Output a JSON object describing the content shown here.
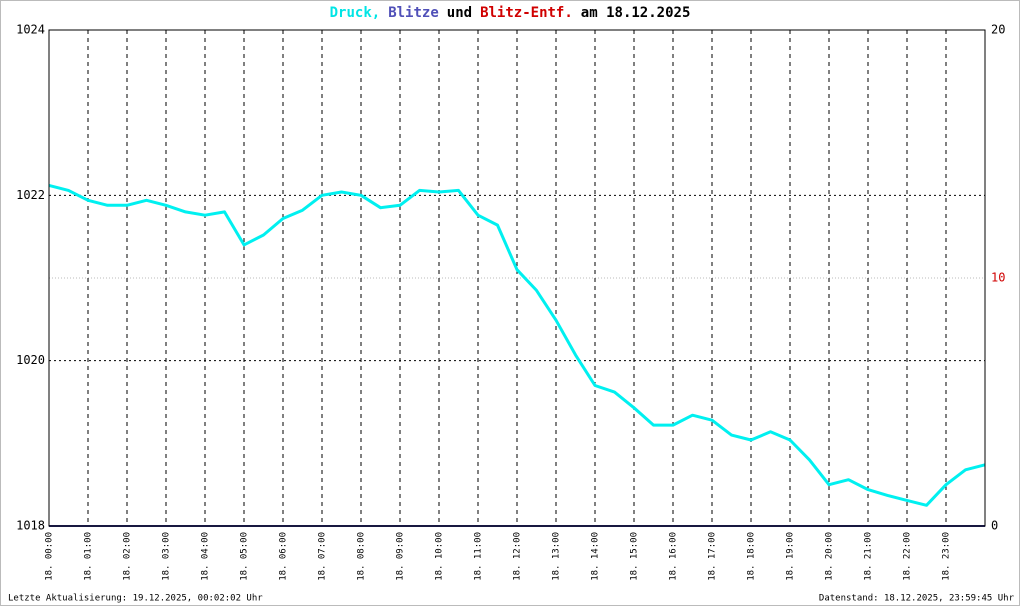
{
  "chart_data": {
    "type": "line",
    "title": [
      "Druck,",
      "Blitze",
      "und",
      "Blitz-Entf.",
      "am 18.12.2025"
    ],
    "title_colors": [
      "#00e5e5",
      "#5050b8",
      "#000000",
      "#d00000",
      "#000000"
    ],
    "footer_left": "Letzte Aktualisierung: 19.12.2025, 00:02:02 Uhr",
    "footer_right": "Datenstand: 18.12.2025, 23:59:45 Uhr",
    "x": [
      0,
      0.5,
      1,
      1.5,
      2,
      2.5,
      3,
      3.5,
      4,
      4.5,
      5,
      5.5,
      6,
      6.5,
      7,
      7.5,
      8,
      8.5,
      9,
      9.5,
      10,
      10.5,
      11,
      11.5,
      12,
      12.5,
      13,
      13.5,
      14,
      14.5,
      15,
      15.5,
      16,
      16.5,
      17,
      17.5,
      18,
      18.5,
      19,
      19.5,
      20,
      20.5,
      21,
      21.5,
      22,
      22.5,
      23,
      23.5,
      24
    ],
    "xlim": [
      0,
      24
    ],
    "xticks": [
      {
        "value": 0,
        "label": "18. 00:00"
      },
      {
        "value": 1,
        "label": "18. 01:00"
      },
      {
        "value": 2,
        "label": "18. 02:00"
      },
      {
        "value": 3,
        "label": "18. 03:00"
      },
      {
        "value": 4,
        "label": "18. 04:00"
      },
      {
        "value": 5,
        "label": "18. 05:00"
      },
      {
        "value": 6,
        "label": "18. 06:00"
      },
      {
        "value": 7,
        "label": "18. 07:00"
      },
      {
        "value": 8,
        "label": "18. 08:00"
      },
      {
        "value": 9,
        "label": "18. 09:00"
      },
      {
        "value": 10,
        "label": "18. 10:00"
      },
      {
        "value": 11,
        "label": "18. 11:00"
      },
      {
        "value": 12,
        "label": "18. 12:00"
      },
      {
        "value": 13,
        "label": "18. 13:00"
      },
      {
        "value": 14,
        "label": "18. 14:00"
      },
      {
        "value": 15,
        "label": "18. 15:00"
      },
      {
        "value": 16,
        "label": "18. 16:00"
      },
      {
        "value": 17,
        "label": "18. 17:00"
      },
      {
        "value": 18,
        "label": "18. 18:00"
      },
      {
        "value": 19,
        "label": "18. 19:00"
      },
      {
        "value": 20,
        "label": "18. 20:00"
      },
      {
        "value": 21,
        "label": "18. 21:00"
      },
      {
        "value": 22,
        "label": "18. 22:00"
      },
      {
        "value": 23,
        "label": "18. 23:00"
      }
    ],
    "ylim": [
      1018,
      1024
    ],
    "yticks": [
      1018,
      1020,
      1022,
      1024
    ],
    "y2lim": [
      0,
      20
    ],
    "y2ticks": [
      0,
      10,
      20
    ],
    "y2tick_colors": [
      "#000000",
      "#d00000",
      "#000000"
    ],
    "grid": true,
    "series": [
      {
        "name": "Druck",
        "color": "#00f0f0",
        "values": [
          1022.12,
          1022.06,
          1021.94,
          1021.88,
          1021.88,
          1021.94,
          1021.88,
          1021.8,
          1021.76,
          1021.8,
          1021.4,
          1021.52,
          1021.72,
          1021.82,
          1022.0,
          1022.04,
          1022.0,
          1021.85,
          1021.88,
          1022.06,
          1022.04,
          1022.06,
          1021.76,
          1021.64,
          1021.1,
          1020.85,
          1020.49,
          1020.07,
          1019.7,
          1019.62,
          1019.43,
          1019.22,
          1019.22,
          1019.34,
          1019.28,
          1019.1,
          1019.04,
          1019.14,
          1019.04,
          1018.8,
          1018.5,
          1018.56,
          1018.44,
          1018.37,
          1018.31,
          1018.25,
          1018.5,
          1018.68,
          1018.74
        ]
      },
      {
        "name": "Blitze",
        "color": "#303080",
        "axis": "y2",
        "values": [
          0,
          0,
          0,
          0,
          0,
          0,
          0,
          0,
          0,
          0,
          0,
          0,
          0,
          0,
          0,
          0,
          0,
          0,
          0,
          0,
          0,
          0,
          0,
          0,
          0,
          0,
          0,
          0,
          0,
          0,
          0,
          0,
          0,
          0,
          0,
          0,
          0,
          0,
          0,
          0,
          0,
          0,
          0,
          0,
          0,
          0,
          0,
          0,
          0
        ]
      }
    ]
  }
}
